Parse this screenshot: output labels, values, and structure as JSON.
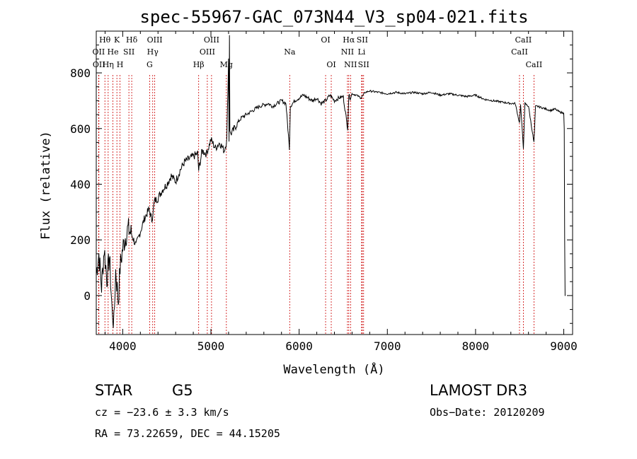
{
  "chart_data": {
    "type": "line",
    "title": "spec-55967-GAC_073N44_V3_sp04-021.fits",
    "xlabel": "Wavelength (Å)",
    "ylabel": "Flux (relative)",
    "xlim": [
      3700,
      9100
    ],
    "ylim": [
      -140,
      950
    ],
    "xticks": [
      4000,
      5000,
      6000,
      7000,
      8000,
      9000
    ],
    "yticks": [
      0,
      200,
      400,
      600,
      800
    ],
    "series": [
      {
        "name": "flux",
        "x": [
          3700,
          3730,
          3760,
          3790,
          3820,
          3850,
          3880,
          3900,
          3920,
          3950,
          3970,
          4000,
          4030,
          4060,
          4100,
          4150,
          4200,
          4250,
          4300,
          4330,
          4360,
          4400,
          4450,
          4500,
          4550,
          4600,
          4650,
          4700,
          4750,
          4800,
          4850,
          4861,
          4900,
          4950,
          5000,
          5050,
          5100,
          5150,
          5180,
          5200,
          5205,
          5210,
          5215,
          5220,
          5250,
          5300,
          5350,
          5400,
          5450,
          5500,
          5550,
          5600,
          5650,
          5700,
          5750,
          5800,
          5850,
          5890,
          5900,
          5950,
          6000,
          6050,
          6100,
          6150,
          6200,
          6250,
          6300,
          6350,
          6400,
          6450,
          6500,
          6550,
          6563,
          6580,
          6600,
          6650,
          6700,
          6750,
          6800,
          6900,
          7000,
          7100,
          7200,
          7300,
          7400,
          7500,
          7600,
          7700,
          7800,
          7900,
          8000,
          8100,
          8200,
          8300,
          8400,
          8450,
          8498,
          8510,
          8542,
          8560,
          8600,
          8662,
          8680,
          8700,
          8750,
          8800,
          8850,
          8900,
          8950,
          9000,
          9005,
          9010,
          9015,
          9020
        ],
        "values": [
          80,
          150,
          30,
          170,
          60,
          140,
          -60,
          -100,
          90,
          -20,
          100,
          170,
          210,
          240,
          220,
          180,
          230,
          280,
          310,
          270,
          340,
          350,
          380,
          400,
          430,
          410,
          450,
          480,
          490,
          500,
          510,
          450,
          520,
          510,
          560,
          530,
          550,
          520,
          560,
          850,
          560,
          940,
          600,
          580,
          590,
          620,
          640,
          650,
          660,
          670,
          680,
          685,
          690,
          680,
          690,
          700,
          690,
          530,
          680,
          700,
          710,
          720,
          710,
          700,
          710,
          690,
          700,
          720,
          700,
          710,
          715,
          600,
          720,
          710,
          725,
          720,
          710,
          730,
          735,
          730,
          725,
          730,
          725,
          730,
          725,
          730,
          720,
          725,
          720,
          715,
          720,
          705,
          700,
          695,
          690,
          690,
          620,
          685,
          530,
          690,
          680,
          550,
          680,
          680,
          675,
          670,
          665,
          670,
          660,
          655,
          600,
          200,
          0,
          0
        ]
      }
    ],
    "lines": [
      {
        "name": "Hθ",
        "wavelength": 3798,
        "row": 0
      },
      {
        "name": "OII",
        "wavelength": 3727,
        "row": 1
      },
      {
        "name": "OII",
        "wavelength": 3730,
        "row": 2
      },
      {
        "name": "He",
        "wavelength": 3889,
        "row": 1
      },
      {
        "name": "Hη",
        "wavelength": 3835,
        "row": 2
      },
      {
        "name": "K",
        "wavelength": 3934,
        "row": 0
      },
      {
        "name": "SII",
        "wavelength": 4070,
        "row": 1
      },
      {
        "name": "H",
        "wavelength": 3969,
        "row": 2
      },
      {
        "name": "Hδ",
        "wavelength": 4102,
        "row": 0
      },
      {
        "name": "OIII",
        "wavelength": 4363,
        "row": 0
      },
      {
        "name": "Hγ",
        "wavelength": 4340,
        "row": 1
      },
      {
        "name": "G",
        "wavelength": 4305,
        "row": 2
      },
      {
        "name": "OIII",
        "wavelength": 5007,
        "row": 0
      },
      {
        "name": "OIII",
        "wavelength": 4959,
        "row": 1
      },
      {
        "name": "Hβ",
        "wavelength": 4861,
        "row": 2
      },
      {
        "name": "Mg",
        "wavelength": 5175,
        "row": 2
      },
      {
        "name": "Na",
        "wavelength": 5893,
        "row": 1
      },
      {
        "name": "OI",
        "wavelength": 6300,
        "row": 0
      },
      {
        "name": "OI",
        "wavelength": 6364,
        "row": 2
      },
      {
        "name": "Hα",
        "wavelength": 6563,
        "row": 0
      },
      {
        "name": "NII",
        "wavelength": 6548,
        "row": 1
      },
      {
        "name": "NII",
        "wavelength": 6583,
        "row": 2
      },
      {
        "name": "SII",
        "wavelength": 6716,
        "row": 0
      },
      {
        "name": "Li",
        "wavelength": 6708,
        "row": 1
      },
      {
        "name": "SII",
        "wavelength": 6731,
        "row": 2
      },
      {
        "name": "CaII",
        "wavelength": 8542,
        "row": 0
      },
      {
        "name": "CaII",
        "wavelength": 8498,
        "row": 1
      },
      {
        "name": "CaII",
        "wavelength": 8662,
        "row": 2
      }
    ],
    "line_color": "#cc0000",
    "grid": false
  },
  "info": {
    "object_class": "STAR",
    "subclass": "G5",
    "survey": "LAMOST DR3",
    "cz": "cz = −23.6 ± 3.3 km/s",
    "obs_date": "Obs−Date: 20120209",
    "coords": "RA =  73.22659, DEC =  44.15205"
  }
}
